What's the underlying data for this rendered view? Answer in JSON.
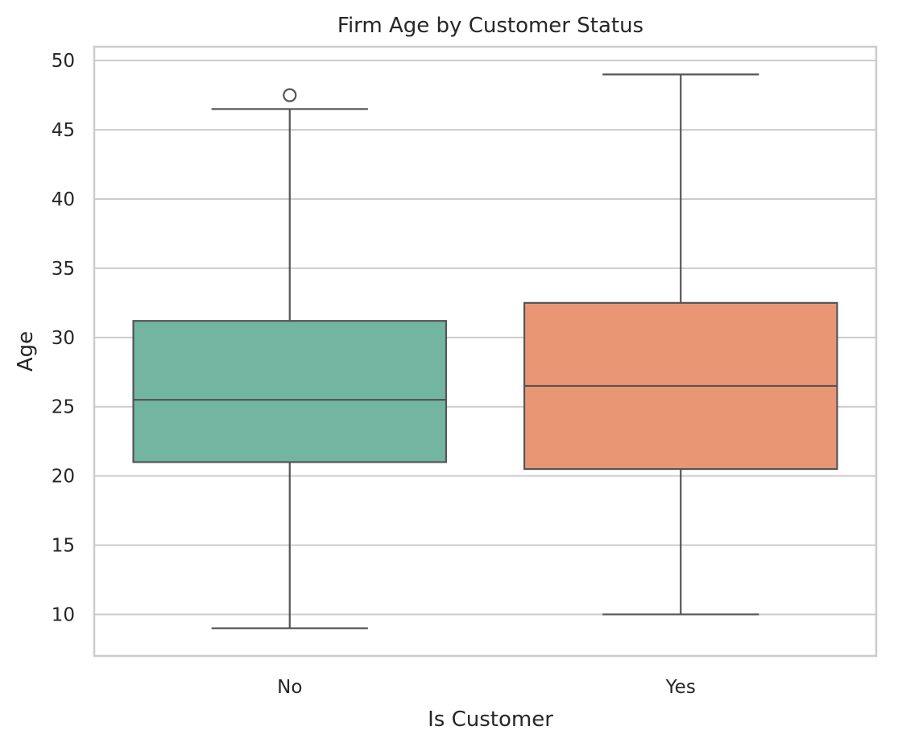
{
  "chart_data": {
    "type": "box",
    "title": "Firm Age by Customer Status",
    "xlabel": "Is Customer",
    "ylabel": "Age",
    "ylim": [
      7,
      51
    ],
    "yticks": [
      10,
      15,
      20,
      25,
      30,
      35,
      40,
      45,
      50
    ],
    "grid": "horizontal",
    "categories": [
      "No",
      "Yes"
    ],
    "boxes": [
      {
        "category": "No",
        "whisker_low": 9,
        "q1": 21,
        "median": 25.5,
        "q3": 31.2,
        "whisker_high": 46.5,
        "outliers": [
          47.5
        ],
        "color": "#72b6a1"
      },
      {
        "category": "Yes",
        "whisker_low": 10,
        "q1": 20.5,
        "median": 26.5,
        "q3": 32.5,
        "whisker_high": 49,
        "outliers": [],
        "color": "#e99675"
      }
    ]
  }
}
